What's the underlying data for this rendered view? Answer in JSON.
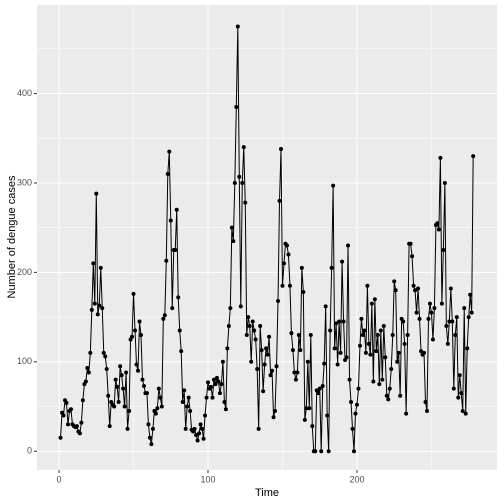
{
  "chart_data": {
    "type": "line",
    "x_label": "Time",
    "y_label": "Number of dengue cases",
    "xlim": [
      -14.8,
      294
    ],
    "ylim": [
      -21,
      499
    ],
    "xticks": [
      0,
      100,
      200
    ],
    "yticks": [
      0,
      100,
      200,
      300,
      400
    ],
    "x_minor_ticks": [
      50,
      150,
      250
    ],
    "y_minor_ticks": [
      50,
      150,
      250,
      350,
      450
    ],
    "grid": true,
    "color": "#000000",
    "x": [
      1,
      2,
      3,
      4,
      5,
      6,
      7,
      8,
      9,
      10,
      11,
      12,
      13,
      14,
      15,
      16,
      17,
      18,
      19,
      20,
      21,
      22,
      23,
      24,
      25,
      26,
      27,
      28,
      29,
      30,
      31,
      32,
      33,
      34,
      35,
      36,
      37,
      38,
      39,
      40,
      41,
      42,
      43,
      44,
      45,
      46,
      47,
      48,
      49,
      50,
      51,
      52,
      53,
      54,
      55,
      56,
      57,
      58,
      59,
      60,
      61,
      62,
      63,
      64,
      65,
      66,
      67,
      68,
      69,
      70,
      71,
      72,
      73,
      74,
      75,
      76,
      77,
      78,
      79,
      80,
      81,
      82,
      83,
      84,
      85,
      86,
      87,
      88,
      89,
      90,
      91,
      92,
      93,
      94,
      95,
      96,
      97,
      98,
      99,
      100,
      101,
      102,
      103,
      104,
      105,
      106,
      107,
      108,
      109,
      110,
      111,
      112,
      113,
      114,
      115,
      116,
      117,
      118,
      119,
      120,
      121,
      122,
      123,
      124,
      125,
      126,
      127,
      128,
      129,
      130,
      131,
      132,
      133,
      134,
      135,
      136,
      137,
      138,
      139,
      140,
      141,
      142,
      143,
      144,
      145,
      146,
      147,
      148,
      149,
      150,
      151,
      152,
      153,
      154,
      155,
      156,
      157,
      158,
      159,
      160,
      161,
      162,
      163,
      164,
      165,
      166,
      167,
      168,
      169,
      170,
      171,
      172,
      173,
      174,
      175,
      176,
      177,
      178,
      179,
      180,
      181,
      182,
      183,
      184,
      185,
      186,
      187,
      188,
      189,
      190,
      191,
      192,
      193,
      194,
      195,
      196,
      197,
      198,
      199,
      200,
      201,
      202,
      203,
      204,
      205,
      206,
      207,
      208,
      209,
      210,
      211,
      212,
      213,
      214,
      215,
      216,
      217,
      218,
      219,
      220,
      221,
      222,
      223,
      224,
      225,
      226,
      227,
      228,
      229,
      230,
      231,
      232,
      233,
      234,
      235,
      236,
      237,
      238,
      239,
      240,
      241,
      242,
      243,
      244,
      245,
      246,
      247,
      248,
      249,
      250,
      251,
      252,
      253,
      254,
      255,
      256,
      257,
      258,
      259,
      260,
      261,
      262,
      263,
      264,
      265,
      266,
      267,
      268,
      269,
      270,
      271,
      272,
      273,
      274,
      275,
      276,
      277,
      278
    ],
    "values": [
      15,
      43,
      40,
      57,
      54,
      30,
      45,
      47,
      30,
      28,
      27,
      28,
      22,
      20,
      32,
      57,
      75,
      78,
      93,
      88,
      110,
      158,
      210,
      165,
      288,
      153,
      163,
      205,
      160,
      110,
      106,
      92,
      62,
      28,
      55,
      52,
      50,
      80,
      72,
      55,
      95,
      85,
      70,
      50,
      88,
      25,
      45,
      125,
      128,
      176,
      135,
      97,
      90,
      145,
      130,
      80,
      73,
      65,
      65,
      30,
      15,
      8,
      25,
      45,
      42,
      48,
      70,
      60,
      50,
      148,
      152,
      213,
      310,
      335,
      258,
      160,
      225,
      225,
      270,
      172,
      135,
      112,
      55,
      68,
      25,
      50,
      60,
      45,
      24,
      22,
      25,
      18,
      12,
      20,
      30,
      25,
      14,
      40,
      60,
      77,
      70,
      72,
      60,
      80,
      75,
      82,
      78,
      65,
      75,
      100,
      55,
      47,
      115,
      140,
      160,
      250,
      235,
      300,
      385,
      475,
      307,
      162,
      300,
      340,
      278,
      130,
      150,
      140,
      100,
      145,
      135,
      125,
      92,
      25,
      140,
      113,
      67,
      97,
      115,
      108,
      128,
      85,
      90,
      38,
      45,
      95,
      168,
      280,
      338,
      185,
      210,
      232,
      230,
      220,
      185,
      132,
      113,
      88,
      80,
      88,
      130,
      113,
      205,
      178,
      35,
      48,
      100,
      48,
      130,
      28,
      0,
      0,
      68,
      65,
      70,
      0,
      73,
      98,
      162,
      40,
      0,
      135,
      205,
      297,
      115,
      143,
      97,
      145,
      110,
      212,
      145,
      102,
      105,
      230,
      80,
      55,
      25,
      0,
      42,
      52,
      70,
      118,
      148,
      130,
      135,
      110,
      185,
      120,
      108,
      165,
      78,
      170,
      112,
      130,
      75,
      135,
      80,
      140,
      105,
      62,
      58,
      70,
      92,
      130,
      190,
      180,
      100,
      110,
      62,
      148,
      145,
      120,
      42,
      130,
      232,
      232,
      218,
      185,
      180,
      155,
      182,
      148,
      112,
      108,
      110,
      55,
      45,
      148,
      165,
      155,
      125,
      160,
      253,
      255,
      248,
      328,
      165,
      225,
      300,
      140,
      120,
      145,
      182,
      145,
      70,
      130,
      150,
      60,
      85,
      65,
      45,
      160,
      42,
      115,
      150,
      175,
      155,
      330
    ]
  }
}
